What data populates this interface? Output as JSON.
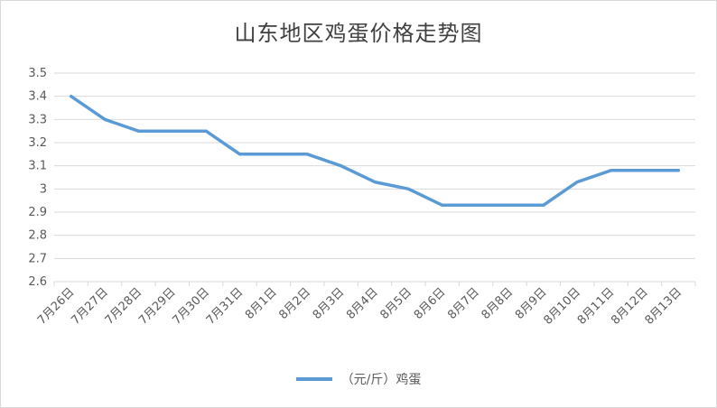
{
  "chart_data": {
    "type": "line",
    "title": "山东地区鸡蛋价格走势图",
    "categories": [
      "7月26日",
      "7月27日",
      "7月28日",
      "7月29日",
      "7月30日",
      "7月31日",
      "8月1日",
      "8月2日",
      "8月3日",
      "8月4日",
      "8月5日",
      "8月6日",
      "8月7日",
      "8月8日",
      "8月9日",
      "8月10日",
      "8月11日",
      "8月12日",
      "8月13日"
    ],
    "series": [
      {
        "name": "（元/斤）鸡蛋",
        "color": "#5b9bd5",
        "values": [
          3.4,
          3.3,
          3.25,
          3.25,
          3.25,
          3.15,
          3.15,
          3.15,
          3.1,
          3.03,
          3.0,
          2.93,
          2.93,
          2.93,
          2.93,
          3.03,
          3.08,
          3.08,
          3.08
        ]
      }
    ],
    "y_ticks": [
      "2.6",
      "2.7",
      "2.8",
      "2.9",
      "3",
      "3.1",
      "3.2",
      "3.3",
      "3.4",
      "3.5"
    ],
    "ylim": [
      2.6,
      3.5
    ],
    "grid": true,
    "legend_position": "bottom"
  }
}
